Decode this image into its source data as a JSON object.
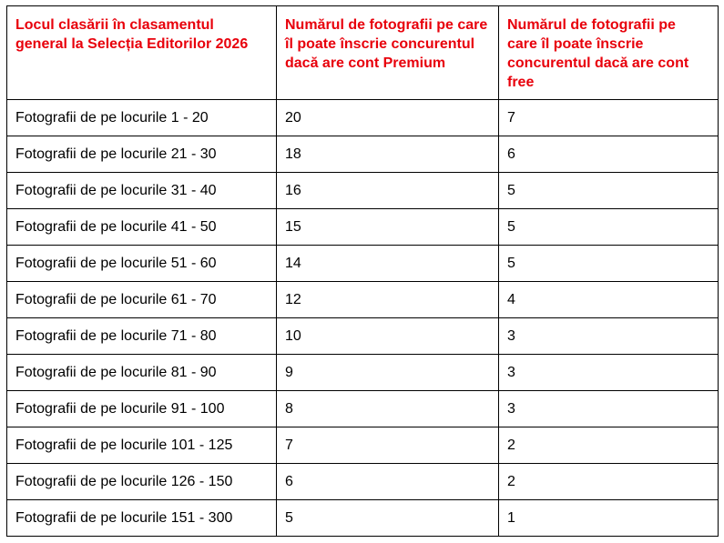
{
  "table": {
    "headers": [
      "Locul clasării în clasamentul general la Selecția Editorilor 2026",
      "Numărul de fotografii pe care îl poate înscrie concurentul dacă are cont Premium",
      "Numărul de fotografii pe care îl poate înscrie concurentul dacă are cont free"
    ],
    "header_color": "#e8000b",
    "rows": [
      [
        "Fotografii de pe locurile 1 - 20",
        "20",
        "7"
      ],
      [
        "Fotografii de pe locurile 21 - 30",
        "18",
        "6"
      ],
      [
        "Fotografii de pe locurile 31 - 40",
        "16",
        "5"
      ],
      [
        "Fotografii de pe locurile 41 - 50",
        "15",
        "5"
      ],
      [
        "Fotografii de pe locurile 51 - 60",
        "14",
        "5"
      ],
      [
        "Fotografii de pe locurile 61 - 70",
        "12",
        "4"
      ],
      [
        "Fotografii de pe locurile 71 - 80",
        "10",
        "3"
      ],
      [
        "Fotografii de pe locurile 81 - 90",
        "9",
        "3"
      ],
      [
        "Fotografii de pe locurile 91 - 100",
        "8",
        "3"
      ],
      [
        "Fotografii de pe locurile 101 - 125",
        "7",
        "2"
      ],
      [
        "Fotografii de pe locurile 126 - 150",
        "6",
        "2"
      ],
      [
        "Fotografii de pe locurile 151 - 300",
        "5",
        "1"
      ]
    ]
  }
}
